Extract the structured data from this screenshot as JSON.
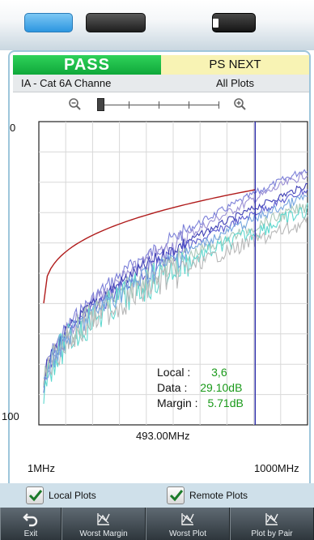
{
  "header": {
    "result": "PASS",
    "test": "PS NEXT",
    "cable_type": "IA - Cat 6A Channe",
    "plot_selection": "All Plots"
  },
  "plot": {
    "y_top_label": "0",
    "y_bottom_label": "100",
    "x_left_label": "1MHz",
    "x_right_label": "1000MHz",
    "cursor_freq_label": "493.00MHz",
    "cursor_freq_mhz": 493,
    "readout": {
      "local_label": "Local :",
      "local_value": "3,6",
      "data_label": "Data :",
      "data_value": "29.10dB",
      "margin_label": "Margin :",
      "margin_value": "5.71dB"
    }
  },
  "checkboxes": {
    "local_plots": {
      "label": "Local Plots",
      "checked": true
    },
    "remote_plots": {
      "label": "Remote Plots",
      "checked": true
    }
  },
  "buttons": {
    "exit": "Exit",
    "worst_margin": "Worst Margin",
    "worst_plot": "Worst Plot",
    "plot_by_pair": "Plot by Pair"
  },
  "colors": {
    "pass_green": "#0fa83a",
    "limit_line": "#b01b1b",
    "cursor": "#2a2aa8",
    "value_green": "#1a9a1a"
  },
  "icons": {
    "zoom_out": "magnifier-minus-icon",
    "zoom_in": "magnifier-plus-icon",
    "exit": "return-arrow-icon",
    "worst_margin": "chart-icon",
    "worst_plot": "chart-icon",
    "plot_by_pair": "chart-icon"
  }
}
